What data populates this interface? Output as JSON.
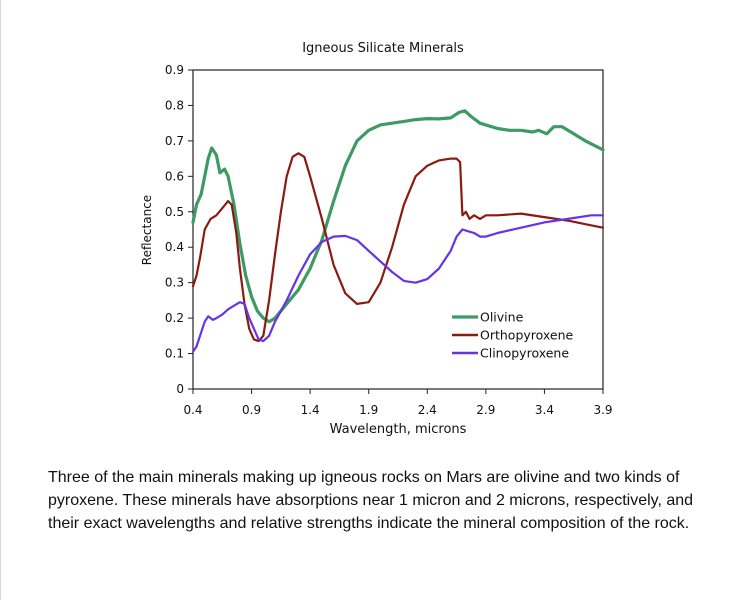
{
  "colors": {
    "olivine": "#3d9a63",
    "orthopyroxene": "#8b1a10",
    "clinopyroxene": "#6633e6",
    "axis": "#222222"
  },
  "chart_data": {
    "type": "line",
    "title": "Igneous Silicate Minerals",
    "xlabel": "Wavelength, microns",
    "ylabel": "Reflectance",
    "xlim": [
      0.4,
      3.9
    ],
    "ylim": [
      0,
      0.9
    ],
    "xticks": [
      "0.4",
      "0.9",
      "1.4",
      "1.9",
      "2.4",
      "2.9",
      "3.4",
      "3.9"
    ],
    "yticks": [
      "0",
      "0.1",
      "0.2",
      "0.3",
      "0.4",
      "0.5",
      "0.6",
      "0.7",
      "0.8",
      "0.9"
    ],
    "legend_position": "lower-right",
    "series": [
      {
        "name": "Olivine",
        "color": "#3d9a63",
        "points": [
          [
            0.4,
            0.47
          ],
          [
            0.43,
            0.52
          ],
          [
            0.47,
            0.55
          ],
          [
            0.5,
            0.6
          ],
          [
            0.53,
            0.65
          ],
          [
            0.56,
            0.68
          ],
          [
            0.6,
            0.66
          ],
          [
            0.63,
            0.61
          ],
          [
            0.67,
            0.62
          ],
          [
            0.7,
            0.6
          ],
          [
            0.75,
            0.52
          ],
          [
            0.8,
            0.41
          ],
          [
            0.85,
            0.32
          ],
          [
            0.9,
            0.26
          ],
          [
            0.95,
            0.22
          ],
          [
            1.0,
            0.2
          ],
          [
            1.05,
            0.19
          ],
          [
            1.1,
            0.2
          ],
          [
            1.15,
            0.22
          ],
          [
            1.2,
            0.24
          ],
          [
            1.3,
            0.28
          ],
          [
            1.4,
            0.34
          ],
          [
            1.5,
            0.42
          ],
          [
            1.6,
            0.53
          ],
          [
            1.7,
            0.63
          ],
          [
            1.8,
            0.7
          ],
          [
            1.9,
            0.73
          ],
          [
            2.0,
            0.745
          ],
          [
            2.1,
            0.75
          ],
          [
            2.2,
            0.755
          ],
          [
            2.3,
            0.76
          ],
          [
            2.4,
            0.763
          ],
          [
            2.5,
            0.762
          ],
          [
            2.6,
            0.765
          ],
          [
            2.67,
            0.78
          ],
          [
            2.72,
            0.785
          ],
          [
            2.77,
            0.77
          ],
          [
            2.85,
            0.75
          ],
          [
            3.0,
            0.735
          ],
          [
            3.1,
            0.73
          ],
          [
            3.2,
            0.73
          ],
          [
            3.3,
            0.725
          ],
          [
            3.35,
            0.73
          ],
          [
            3.42,
            0.72
          ],
          [
            3.48,
            0.74
          ],
          [
            3.55,
            0.74
          ],
          [
            3.65,
            0.72
          ],
          [
            3.75,
            0.7
          ],
          [
            3.9,
            0.675
          ]
        ]
      },
      {
        "name": "Orthopyroxene",
        "color": "#8b1a10",
        "points": [
          [
            0.4,
            0.29
          ],
          [
            0.43,
            0.32
          ],
          [
            0.46,
            0.37
          ],
          [
            0.5,
            0.45
          ],
          [
            0.55,
            0.48
          ],
          [
            0.6,
            0.49
          ],
          [
            0.65,
            0.51
          ],
          [
            0.7,
            0.53
          ],
          [
            0.73,
            0.52
          ],
          [
            0.77,
            0.44
          ],
          [
            0.8,
            0.34
          ],
          [
            0.84,
            0.24
          ],
          [
            0.88,
            0.17
          ],
          [
            0.92,
            0.14
          ],
          [
            0.96,
            0.135
          ],
          [
            1.0,
            0.15
          ],
          [
            1.05,
            0.25
          ],
          [
            1.1,
            0.38
          ],
          [
            1.15,
            0.5
          ],
          [
            1.2,
            0.6
          ],
          [
            1.25,
            0.655
          ],
          [
            1.3,
            0.665
          ],
          [
            1.35,
            0.655
          ],
          [
            1.4,
            0.6
          ],
          [
            1.5,
            0.48
          ],
          [
            1.6,
            0.35
          ],
          [
            1.7,
            0.27
          ],
          [
            1.8,
            0.24
          ],
          [
            1.9,
            0.245
          ],
          [
            2.0,
            0.3
          ],
          [
            2.1,
            0.4
          ],
          [
            2.2,
            0.52
          ],
          [
            2.3,
            0.6
          ],
          [
            2.4,
            0.63
          ],
          [
            2.5,
            0.645
          ],
          [
            2.6,
            0.65
          ],
          [
            2.65,
            0.65
          ],
          [
            2.68,
            0.64
          ],
          [
            2.7,
            0.49
          ],
          [
            2.73,
            0.5
          ],
          [
            2.76,
            0.48
          ],
          [
            2.8,
            0.49
          ],
          [
            2.85,
            0.48
          ],
          [
            2.9,
            0.49
          ],
          [
            3.0,
            0.49
          ],
          [
            3.2,
            0.495
          ],
          [
            3.4,
            0.485
          ],
          [
            3.6,
            0.475
          ],
          [
            3.75,
            0.465
          ],
          [
            3.9,
            0.455
          ]
        ]
      },
      {
        "name": "Clinopyroxene",
        "color": "#6633e6",
        "points": [
          [
            0.4,
            0.105
          ],
          [
            0.43,
            0.12
          ],
          [
            0.47,
            0.16
          ],
          [
            0.5,
            0.19
          ],
          [
            0.53,
            0.205
          ],
          [
            0.57,
            0.195
          ],
          [
            0.6,
            0.2
          ],
          [
            0.65,
            0.21
          ],
          [
            0.7,
            0.225
          ],
          [
            0.75,
            0.235
          ],
          [
            0.8,
            0.245
          ],
          [
            0.84,
            0.24
          ],
          [
            0.88,
            0.2
          ],
          [
            0.92,
            0.17
          ],
          [
            0.96,
            0.14
          ],
          [
            1.0,
            0.135
          ],
          [
            1.05,
            0.15
          ],
          [
            1.1,
            0.19
          ],
          [
            1.2,
            0.25
          ],
          [
            1.3,
            0.32
          ],
          [
            1.4,
            0.38
          ],
          [
            1.5,
            0.415
          ],
          [
            1.6,
            0.43
          ],
          [
            1.7,
            0.432
          ],
          [
            1.8,
            0.42
          ],
          [
            1.9,
            0.39
          ],
          [
            2.0,
            0.36
          ],
          [
            2.1,
            0.33
          ],
          [
            2.2,
            0.305
          ],
          [
            2.3,
            0.3
          ],
          [
            2.4,
            0.31
          ],
          [
            2.5,
            0.34
          ],
          [
            2.6,
            0.39
          ],
          [
            2.65,
            0.43
          ],
          [
            2.7,
            0.45
          ],
          [
            2.75,
            0.445
          ],
          [
            2.8,
            0.44
          ],
          [
            2.85,
            0.43
          ],
          [
            2.9,
            0.43
          ],
          [
            3.0,
            0.44
          ],
          [
            3.2,
            0.455
          ],
          [
            3.4,
            0.47
          ],
          [
            3.6,
            0.48
          ],
          [
            3.8,
            0.49
          ],
          [
            3.9,
            0.49
          ]
        ]
      }
    ]
  },
  "caption": "Three of the main minerals making up igneous rocks on Mars are olivine and two kinds of pyroxene.  These minerals have absorptions near 1 micron and 2 microns, respectively, and their exact wavelengths and relative strengths indicate the mineral composition of the rock."
}
